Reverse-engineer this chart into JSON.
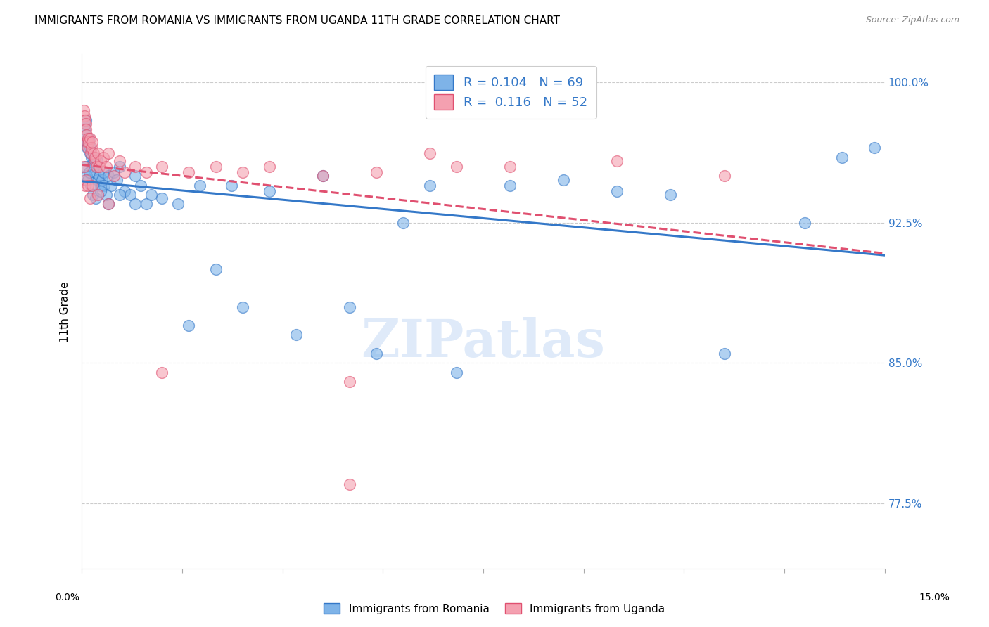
{
  "title": "IMMIGRANTS FROM ROMANIA VS IMMIGRANTS FROM UGANDA 11TH GRADE CORRELATION CHART",
  "source": "Source: ZipAtlas.com",
  "ylabel": "11th Grade",
  "yticks": [
    77.5,
    85.0,
    92.5,
    100.0
  ],
  "xmin": 0.0,
  "xmax": 15.0,
  "ymin": 74.0,
  "ymax": 101.5,
  "romania_R": 0.104,
  "romania_N": 69,
  "uganda_R": 0.116,
  "uganda_N": 52,
  "color_romania": "#7EB3E8",
  "color_uganda": "#F4A0B0",
  "color_trendline_romania": "#3478C8",
  "color_trendline_uganda": "#E05070",
  "romania_x": [
    0.05,
    0.06,
    0.07,
    0.08,
    0.09,
    0.1,
    0.12,
    0.13,
    0.15,
    0.16,
    0.18,
    0.2,
    0.22,
    0.23,
    0.25,
    0.27,
    0.28,
    0.3,
    0.32,
    0.35,
    0.38,
    0.4,
    0.42,
    0.45,
    0.5,
    0.55,
    0.6,
    0.65,
    0.7,
    0.8,
    0.9,
    1.0,
    1.1,
    1.2,
    1.3,
    1.5,
    1.8,
    2.0,
    2.2,
    2.5,
    2.8,
    3.0,
    3.5,
    4.0,
    4.5,
    5.0,
    5.5,
    6.0,
    6.5,
    7.0,
    8.0,
    9.0,
    10.0,
    11.0,
    12.0,
    13.5,
    14.2,
    14.8,
    0.07,
    0.09,
    0.11,
    0.14,
    0.17,
    0.21,
    0.26,
    0.35,
    0.5,
    0.7,
    1.0
  ],
  "romania_y": [
    97.5,
    97.8,
    98.0,
    97.2,
    96.8,
    96.5,
    96.8,
    97.0,
    96.2,
    96.5,
    96.0,
    95.5,
    95.8,
    96.0,
    95.2,
    95.5,
    95.8,
    94.8,
    95.0,
    94.5,
    94.8,
    95.2,
    94.5,
    94.0,
    95.0,
    94.5,
    95.2,
    94.8,
    95.5,
    94.2,
    94.0,
    95.0,
    94.5,
    93.5,
    94.0,
    93.8,
    93.5,
    87.0,
    94.5,
    90.0,
    94.5,
    88.0,
    94.2,
    86.5,
    95.0,
    88.0,
    85.5,
    92.5,
    94.5,
    84.5,
    94.5,
    94.8,
    94.2,
    94.0,
    85.5,
    92.5,
    96.0,
    96.5,
    95.5,
    95.0,
    94.8,
    95.2,
    94.5,
    94.0,
    93.8,
    94.2,
    93.5,
    94.0,
    93.5
  ],
  "uganda_x": [
    0.04,
    0.05,
    0.06,
    0.07,
    0.08,
    0.09,
    0.1,
    0.11,
    0.12,
    0.13,
    0.15,
    0.17,
    0.18,
    0.2,
    0.22,
    0.24,
    0.25,
    0.27,
    0.3,
    0.33,
    0.35,
    0.4,
    0.45,
    0.5,
    0.6,
    0.7,
    0.8,
    1.0,
    1.2,
    1.5,
    2.0,
    2.5,
    3.0,
    3.5,
    4.5,
    5.5,
    6.5,
    7.0,
    8.0,
    10.0,
    0.04,
    0.06,
    0.08,
    0.12,
    0.15,
    0.2,
    0.3,
    0.5,
    1.5,
    5.0,
    12.0,
    5.0
  ],
  "uganda_y": [
    98.5,
    98.2,
    98.0,
    97.8,
    97.5,
    97.2,
    96.8,
    97.0,
    96.5,
    96.8,
    97.0,
    96.2,
    96.5,
    96.8,
    96.2,
    95.8,
    96.0,
    95.5,
    96.2,
    95.5,
    95.8,
    96.0,
    95.5,
    96.2,
    95.0,
    95.8,
    95.2,
    95.5,
    95.2,
    95.5,
    95.2,
    95.5,
    95.2,
    95.5,
    95.0,
    95.2,
    96.2,
    95.5,
    95.5,
    95.8,
    95.5,
    94.5,
    94.8,
    94.5,
    93.8,
    94.5,
    94.0,
    93.5,
    84.5,
    84.0,
    95.0,
    78.5
  ]
}
